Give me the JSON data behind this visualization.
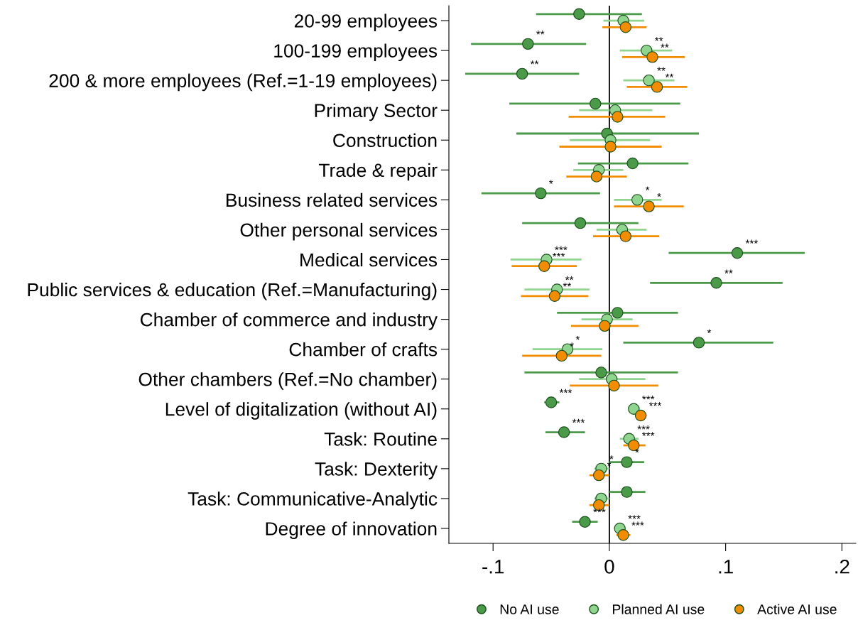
{
  "chart_data": {
    "type": "scatter",
    "orientation": "horizontal",
    "categories": [
      "20-99 employees",
      "100-199 employees",
      "200 & more employees (Ref.=1-19 employees)",
      "Primary Sector",
      "Construction",
      "Trade & repair",
      "Business related services",
      "Other personal services",
      "Medical services",
      "Public services & education (Ref.=Manufacturing)",
      "Chamber of commerce and industry",
      "Chamber of crafts",
      "Other chambers (Ref.=No chamber)",
      "Level of digitalization (without AI)",
      "Task: Routine",
      "Task: Dexterity",
      "Task: Communicative-Analytic",
      "Degree of innovation"
    ],
    "series": [
      {
        "name": "No AI use",
        "color": "#4a9a4a",
        "values": [
          -0.026,
          -0.07,
          -0.075,
          -0.012,
          -0.002,
          0.02,
          -0.059,
          -0.025,
          0.11,
          0.092,
          0.007,
          0.077,
          -0.007,
          -0.05,
          -0.039,
          0.015,
          0.015,
          -0.021
        ],
        "errors": [
          [
            -0.063,
            0.028
          ],
          [
            -0.119,
            -0.02
          ],
          [
            -0.124,
            -0.026
          ],
          [
            -0.086,
            0.061
          ],
          [
            -0.08,
            0.077
          ],
          [
            -0.027,
            0.068
          ],
          [
            -0.11,
            -0.008
          ],
          [
            -0.075,
            0.025
          ],
          [
            0.051,
            0.168
          ],
          [
            0.035,
            0.149
          ],
          [
            -0.045,
            0.059
          ],
          [
            0.012,
            0.141
          ],
          [
            -0.073,
            0.059
          ],
          [
            -0.056,
            -0.043
          ],
          [
            -0.055,
            -0.021
          ],
          [
            0.0,
            0.03
          ],
          [
            0.0,
            0.031
          ],
          [
            -0.032,
            -0.01
          ]
        ],
        "value_labels": [
          null,
          "**",
          "**",
          null,
          null,
          null,
          "*",
          null,
          "***",
          "**",
          null,
          "*",
          null,
          "***",
          "***",
          "*",
          null,
          "***"
        ]
      },
      {
        "name": "Planned AI use",
        "color": "#8fd48f",
        "values": [
          0.012,
          0.032,
          0.034,
          0.005,
          0.001,
          -0.009,
          0.024,
          0.011,
          -0.054,
          -0.045,
          -0.002,
          -0.036,
          0.002,
          0.021,
          0.017,
          -0.007,
          -0.007,
          0.009
        ],
        "errors": [
          [
            -0.005,
            0.03
          ],
          [
            0.009,
            0.054
          ],
          [
            0.012,
            0.056
          ],
          [
            -0.026,
            0.037
          ],
          [
            -0.034,
            0.035
          ],
          [
            -0.031,
            0.012
          ],
          [
            0.004,
            0.045
          ],
          [
            -0.011,
            0.032
          ],
          [
            -0.085,
            -0.024
          ],
          [
            -0.073,
            -0.017
          ],
          [
            -0.024,
            0.02
          ],
          [
            -0.066,
            -0.006
          ],
          [
            -0.026,
            0.031
          ],
          [
            0.017,
            0.026
          ],
          [
            0.009,
            0.025
          ],
          [
            -0.013,
            0.0
          ],
          [
            -0.013,
            0.0
          ],
          [
            0.004,
            0.013
          ]
        ],
        "value_labels": [
          null,
          "**",
          "**",
          null,
          null,
          null,
          "*",
          null,
          "***",
          "**",
          null,
          "*",
          null,
          "***",
          "***",
          "*",
          null,
          "***"
        ]
      },
      {
        "name": "Active AI use",
        "color": "#f28c00",
        "values": [
          0.014,
          0.037,
          0.041,
          0.007,
          0.001,
          -0.011,
          0.034,
          0.014,
          -0.056,
          -0.047,
          -0.004,
          -0.041,
          0.004,
          0.027,
          0.021,
          -0.009,
          -0.009,
          0.012
        ],
        "errors": [
          [
            -0.006,
            0.032
          ],
          [
            0.011,
            0.065
          ],
          [
            0.015,
            0.067
          ],
          [
            -0.035,
            0.048
          ],
          [
            -0.043,
            0.045
          ],
          [
            -0.037,
            0.015
          ],
          [
            0.004,
            0.064
          ],
          [
            -0.014,
            0.043
          ],
          [
            -0.084,
            -0.028
          ],
          [
            -0.076,
            -0.018
          ],
          [
            -0.033,
            0.025
          ],
          [
            -0.075,
            -0.007
          ],
          [
            -0.034,
            0.042
          ],
          [
            0.022,
            0.032
          ],
          [
            0.012,
            0.031
          ],
          [
            -0.017,
            0.0
          ],
          [
            -0.017,
            0.0
          ],
          [
            0.006,
            0.018
          ]
        ],
        "value_labels": [
          null,
          "**",
          "**",
          null,
          null,
          null,
          "*",
          null,
          "***",
          "**",
          null,
          "*",
          null,
          "***",
          "***",
          "*",
          null,
          "***"
        ]
      }
    ],
    "xlim": [
      -0.138,
      0.212
    ],
    "xticks": [
      {
        "value": -0.1,
        "label": "-.1"
      },
      0,
      {
        "value": 0.1,
        "label": ".1"
      },
      {
        "value": 0.2,
        "label": ".2"
      }
    ],
    "ref_lines": [
      {
        "axis": "x",
        "value": 0,
        "color": "#000000"
      }
    ],
    "marker": "circle",
    "legend": "bottom",
    "grid": false
  }
}
